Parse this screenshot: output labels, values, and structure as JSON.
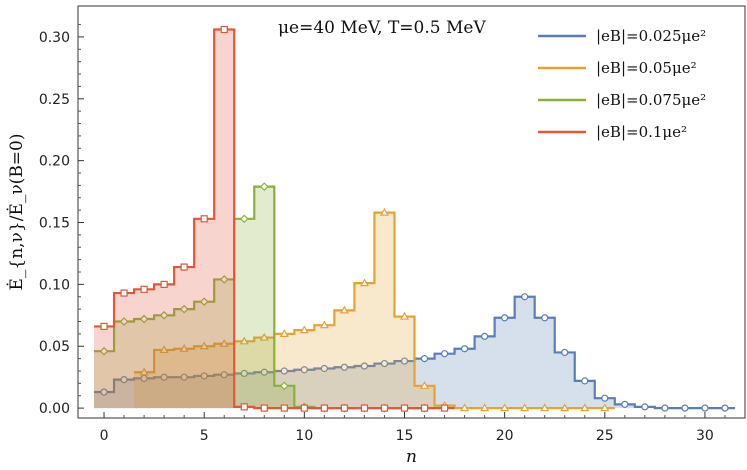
{
  "chart_data": {
    "type": "area",
    "title": "",
    "annotation": "μe=40 MeV, T=0.5 MeV",
    "xlabel": "n",
    "ylabel": "Ė_{n,ν}/Ė_ν(B=0)",
    "xlim": [
      -1.3,
      32
    ],
    "ylim": [
      -0.008,
      0.325
    ],
    "xticks": [
      0,
      5,
      10,
      15,
      20,
      25,
      30
    ],
    "yticks": [
      0.0,
      0.05,
      0.1,
      0.15,
      0.2,
      0.25,
      0.3
    ],
    "ytick_labels": [
      "0.00",
      "0.05",
      "0.10",
      "0.15",
      "0.20",
      "0.25",
      "0.30"
    ],
    "grid": false,
    "legend_position": "top-right",
    "series": [
      {
        "name": "|eB|=0.025μe²",
        "color": "#5b7fb5",
        "marker": "circle",
        "x": [
          0,
          1,
          2,
          3,
          4,
          5,
          6,
          7,
          8,
          9,
          10,
          11,
          12,
          13,
          14,
          15,
          16,
          17,
          18,
          19,
          20,
          21,
          22,
          23,
          24,
          25,
          26,
          27,
          28,
          29,
          30,
          31
        ],
        "values": [
          0.013,
          0.023,
          0.024,
          0.025,
          0.025,
          0.026,
          0.027,
          0.028,
          0.029,
          0.03,
          0.031,
          0.032,
          0.033,
          0.034,
          0.036,
          0.038,
          0.04,
          0.044,
          0.048,
          0.058,
          0.073,
          0.09,
          0.073,
          0.045,
          0.022,
          0.008,
          0.003,
          0.001,
          0.0,
          0.0,
          0.0,
          0.0
        ]
      },
      {
        "name": "|eB|=0.05μe²",
        "color": "#e5a235",
        "marker": "triangle",
        "x": [
          0,
          1,
          2,
          3,
          4,
          5,
          6,
          7,
          8,
          9,
          10,
          11,
          12,
          13,
          14,
          15,
          16,
          17,
          18,
          19,
          20,
          21,
          22,
          23
        ],
        "values": [
          0.029,
          0.047,
          0.048,
          0.05,
          0.052,
          0.054,
          0.057,
          0.06,
          0.063,
          0.067,
          0.079,
          0.101,
          0.158,
          0.074,
          0.018,
          0.002,
          0.0,
          0.0,
          0.0,
          0.0,
          0.0,
          0.0,
          0.0,
          0.0
        ],
        "x_offset": 2.0
      },
      {
        "name": "|eB|=0.075μe²",
        "color": "#8ab13c",
        "marker": "diamond",
        "x": [
          0,
          1,
          2,
          3,
          4,
          5,
          6,
          7,
          8,
          9,
          10,
          11,
          12,
          13,
          14,
          15,
          16
        ],
        "values": [
          0.046,
          0.07,
          0.072,
          0.075,
          0.08,
          0.086,
          0.104,
          0.153,
          0.179,
          0.018,
          0.001,
          0.0,
          0.0,
          0.0,
          0.0,
          0.0,
          0.0
        ]
      },
      {
        "name": "|eB|=0.1μe²",
        "color": "#e0573a",
        "marker": "square",
        "x": [
          0,
          1,
          2,
          3,
          4,
          5,
          6,
          7,
          8,
          9,
          10,
          11,
          12,
          13,
          14,
          15,
          16,
          17
        ],
        "values": [
          0.066,
          0.093,
          0.096,
          0.1,
          0.114,
          0.153,
          0.306,
          0.001,
          0.0,
          0.0,
          0.0,
          0.0,
          0.0,
          0.0,
          0.0,
          0.0,
          0.0,
          0.0
        ]
      }
    ]
  }
}
